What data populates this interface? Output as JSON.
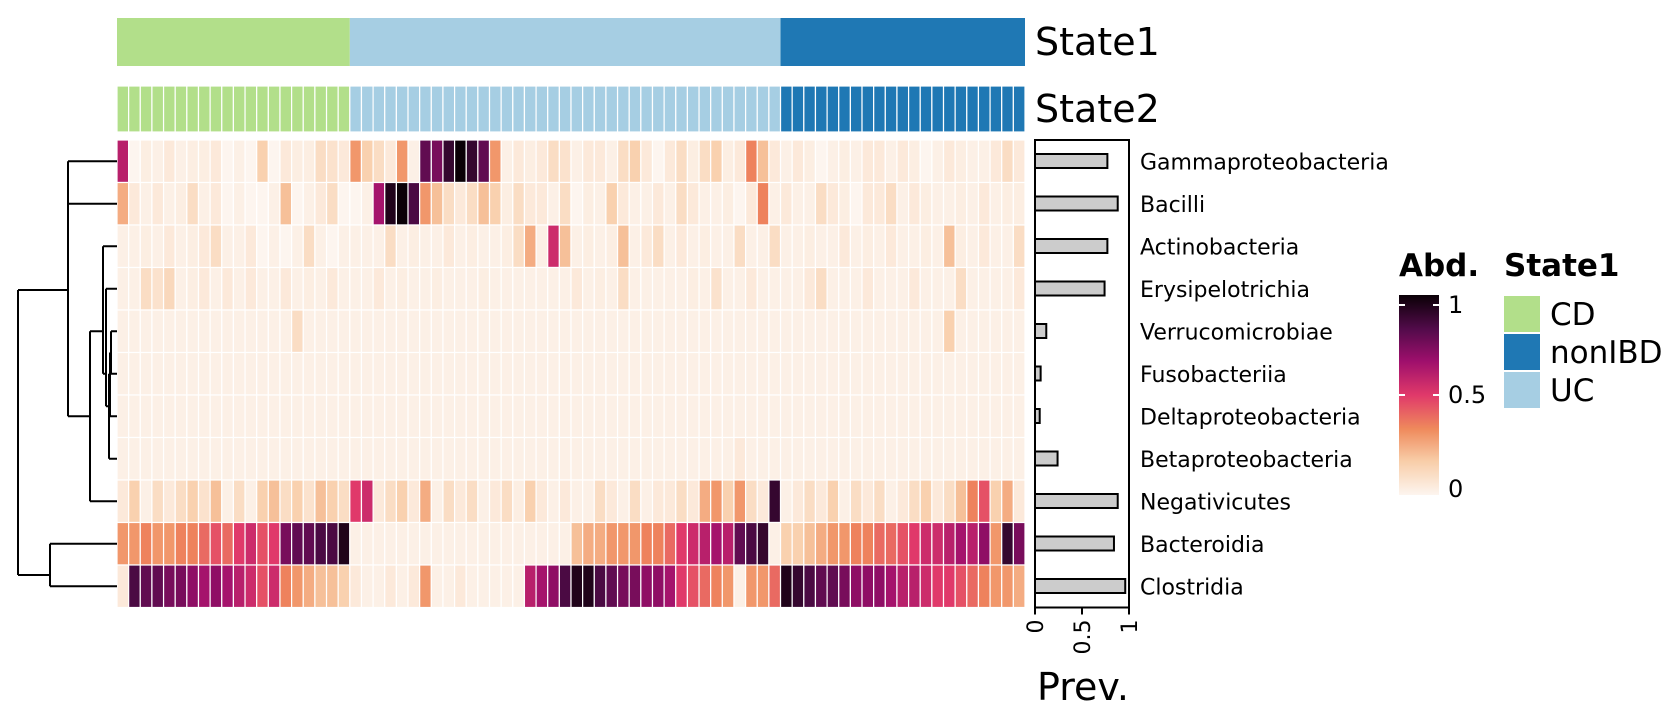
{
  "chart_data": {
    "type": "heatmap",
    "annotation_tracks": [
      "State1",
      "State2"
    ],
    "groups": [
      {
        "name": "CD",
        "color": "#b2df8a",
        "columns": 20
      },
      {
        "name": "UC",
        "color": "#a6cee3",
        "columns": 37
      },
      {
        "name": "nonIBD",
        "color": "#1f78b4",
        "columns": 21
      }
    ],
    "rows": [
      "Gammaproteobacteria",
      "Bacilli",
      "Actinobacteria",
      "Erysipelotrichia",
      "Verrucomicrobiae",
      "Fusobacteriia",
      "Deltaproteobacteria",
      "Betaproteobacteria",
      "Negativicutes",
      "Bacteroidia",
      "Clostridia"
    ],
    "prevalence": [
      0.77,
      0.88,
      0.77,
      0.74,
      0.12,
      0.06,
      0.05,
      0.24,
      0.88,
      0.84,
      0.96
    ],
    "prevalence_axis": {
      "label": "Prev.",
      "ticks": [
        "0",
        "0.5",
        "1"
      ],
      "range": [
        0,
        1
      ]
    },
    "abundance_legend": {
      "title": "Abd.",
      "ticks": [
        "1",
        "0.5",
        "0"
      ],
      "range": [
        0,
        1
      ]
    },
    "group_legend": {
      "title": "State1",
      "items": [
        "CD",
        "nonIBD",
        "UC"
      ]
    },
    "colormap": [
      "#fdf5ef",
      "#f8cda8",
      "#ef8a5c",
      "#e0396a",
      "#9e0f6c",
      "#520b4a",
      "#0a0006"
    ],
    "dendrogram": "hierarchical clustering of rows (left)",
    "values": [
      [
        0.6,
        0,
        0.03,
        0.02,
        0.05,
        0.02,
        0.03,
        0.03,
        0.05,
        0,
        0.02,
        0,
        0.15,
        0,
        0.05,
        0.03,
        0.03,
        0.1,
        0.08,
        0.05,
        0.3,
        0.15,
        0.1,
        0.05,
        0.3,
        0.02,
        0.8,
        0.75,
        0.9,
        1,
        0.9,
        0.8,
        0.3,
        0.02,
        0.05,
        0.03,
        0.05,
        0.1,
        0.08,
        0.02,
        0.05,
        0.05,
        0.02,
        0.1,
        0.15,
        0.05,
        0,
        0.05,
        0.1,
        0.03,
        0.1,
        0.15,
        0.03,
        0.05,
        0.35,
        0.2,
        0.05,
        0.02,
        0.05,
        0.03,
        0,
        0.02,
        0.03,
        0.02,
        0.05,
        0.05,
        0.02,
        0.05,
        0.03,
        0,
        0.02,
        0.05,
        0.03,
        0.02,
        0.02,
        0.05,
        0.1,
        0.05
      ],
      [
        0.25,
        0.05,
        0.02,
        0.05,
        0.02,
        0.03,
        0.1,
        0.02,
        0.05,
        0,
        0.02,
        0,
        0,
        0.02,
        0.2,
        0,
        0.02,
        0.05,
        0.1,
        0,
        0,
        0.02,
        0.65,
        0.95,
        1,
        0.85,
        0.3,
        0.2,
        0.1,
        0.05,
        0.1,
        0.2,
        0.15,
        0.03,
        0.1,
        0.05,
        0.05,
        0.02,
        0.1,
        0,
        0.03,
        0.02,
        0.15,
        0.05,
        0.02,
        0.02,
        0.05,
        0.02,
        0.1,
        0.05,
        0.02,
        0.02,
        0.03,
        0,
        0.05,
        0.35,
        0.02,
        0.05,
        0.02,
        0.02,
        0.1,
        0.05,
        0.03,
        0,
        0.05,
        0.05,
        0.1,
        0.02,
        0.05,
        0.03,
        0.02,
        0.02,
        0.03,
        0.02,
        0.05,
        0.02,
        0.03,
        0.03
      ],
      [
        0.02,
        0.02,
        0.03,
        0.02,
        0.05,
        0.02,
        0.03,
        0.05,
        0.1,
        0.02,
        0.02,
        0.05,
        0,
        0.02,
        0,
        0.02,
        0.1,
        0.02,
        0,
        0.02,
        0.02,
        0.02,
        0.02,
        0.1,
        0.02,
        0.03,
        0.02,
        0.02,
        0.05,
        0.02,
        0.03,
        0.02,
        0.02,
        0.03,
        0.1,
        0.25,
        0.02,
        0.55,
        0.2,
        0.02,
        0.03,
        0.02,
        0.03,
        0.2,
        0.02,
        0.05,
        0.1,
        0.02,
        0.05,
        0.02,
        0.03,
        0.02,
        0.02,
        0.1,
        0.02,
        0.02,
        0.1,
        0.02,
        0.02,
        0.03,
        0.02,
        0.02,
        0.05,
        0.02,
        0.03,
        0.02,
        0.05,
        0.02,
        0.02,
        0.03,
        0.02,
        0.2,
        0.03,
        0.02,
        0.05,
        0.02,
        0.02,
        0.1
      ],
      [
        0.02,
        0.02,
        0.1,
        0.08,
        0.12,
        0.02,
        0.03,
        0.05,
        0.02,
        0.05,
        0.02,
        0.05,
        0.02,
        0.02,
        0.05,
        0.02,
        0.03,
        0.02,
        0.05,
        0.02,
        0.02,
        0.02,
        0.05,
        0.02,
        0.03,
        0.02,
        0.02,
        0.03,
        0.02,
        0.02,
        0.02,
        0.03,
        0.02,
        0.02,
        0.02,
        0.02,
        0.02,
        0.02,
        0.02,
        0.05,
        0.02,
        0.03,
        0.02,
        0.1,
        0.02,
        0.02,
        0.02,
        0.02,
        0.02,
        0.03,
        0.02,
        0.08,
        0.02,
        0.02,
        0.05,
        0.02,
        0.02,
        0.02,
        0.02,
        0.05,
        0.1,
        0.02,
        0.02,
        0.02,
        0.05,
        0.02,
        0.02,
        0.02,
        0.05,
        0.02,
        0.02,
        0.02,
        0.1,
        0.02,
        0.02,
        0.02,
        0.02,
        0.05
      ],
      [
        0.02,
        0.02,
        0.02,
        0.02,
        0.02,
        0.02,
        0.02,
        0.02,
        0.02,
        0.02,
        0.02,
        0.02,
        0.02,
        0.02,
        0.02,
        0.1,
        0.02,
        0.02,
        0.02,
        0.02,
        0.02,
        0.02,
        0.02,
        0.02,
        0.02,
        0.02,
        0.02,
        0.02,
        0.02,
        0.02,
        0.02,
        0.02,
        0.02,
        0.02,
        0.02,
        0.02,
        0.02,
        0.02,
        0.02,
        0.02,
        0.02,
        0.02,
        0.02,
        0.02,
        0.02,
        0.02,
        0.02,
        0.02,
        0.02,
        0.02,
        0.02,
        0.02,
        0.02,
        0.02,
        0.02,
        0.02,
        0.02,
        0.02,
        0.02,
        0.02,
        0.02,
        0.02,
        0.02,
        0.02,
        0.02,
        0.02,
        0.02,
        0.02,
        0.02,
        0.02,
        0.02,
        0.15,
        0.02,
        0.02,
        0.02,
        0.02,
        0.02,
        0.02
      ],
      [
        0.02,
        0.02,
        0.02,
        0.02,
        0.02,
        0.02,
        0.02,
        0.02,
        0.02,
        0.02,
        0.02,
        0.02,
        0.02,
        0.02,
        0.02,
        0.02,
        0.02,
        0.02,
        0.02,
        0.02,
        0.02,
        0.02,
        0.02,
        0.02,
        0.02,
        0.02,
        0.02,
        0.02,
        0.02,
        0.02,
        0.02,
        0.02,
        0.02,
        0.02,
        0.02,
        0.02,
        0.02,
        0.02,
        0.02,
        0.02,
        0.02,
        0.02,
        0.02,
        0.02,
        0.02,
        0.02,
        0.02,
        0.02,
        0.02,
        0.02,
        0.02,
        0.02,
        0.02,
        0.02,
        0.02,
        0.02,
        0.02,
        0.02,
        0.02,
        0.02,
        0.02,
        0.02,
        0.02,
        0.02,
        0.02,
        0.02,
        0.02,
        0.02,
        0.02,
        0.02,
        0.02,
        0.02,
        0.02,
        0.02,
        0.02,
        0.02,
        0.02,
        0.02
      ],
      [
        0.02,
        0.02,
        0.02,
        0.02,
        0.02,
        0.02,
        0.02,
        0.02,
        0.02,
        0.02,
        0.02,
        0.02,
        0.02,
        0.02,
        0.02,
        0.02,
        0.02,
        0.02,
        0.02,
        0.02,
        0.02,
        0.02,
        0.02,
        0.02,
        0.02,
        0.02,
        0.02,
        0.02,
        0.02,
        0.02,
        0.02,
        0.02,
        0.02,
        0.02,
        0.02,
        0.02,
        0.02,
        0.02,
        0.02,
        0.02,
        0.02,
        0.02,
        0.02,
        0.02,
        0.02,
        0.02,
        0.02,
        0.02,
        0.02,
        0.02,
        0.02,
        0.02,
        0.02,
        0.02,
        0.02,
        0.02,
        0.02,
        0.02,
        0.02,
        0.02,
        0.02,
        0.02,
        0.02,
        0.02,
        0.02,
        0.02,
        0.02,
        0.02,
        0.02,
        0.02,
        0.02,
        0.02,
        0.02,
        0.02,
        0.02,
        0.02,
        0.02,
        0.02
      ],
      [
        0.02,
        0.02,
        0.02,
        0.02,
        0.02,
        0.02,
        0.02,
        0.02,
        0.02,
        0.02,
        0.02,
        0.02,
        0.02,
        0.02,
        0.02,
        0.02,
        0.02,
        0.02,
        0.02,
        0.02,
        0.02,
        0.02,
        0.02,
        0.02,
        0.02,
        0.02,
        0.02,
        0.02,
        0.02,
        0.02,
        0.02,
        0.02,
        0.02,
        0.02,
        0.02,
        0.02,
        0.02,
        0.02,
        0.02,
        0.02,
        0.02,
        0.02,
        0.02,
        0.02,
        0.02,
        0.02,
        0.02,
        0.02,
        0.02,
        0.02,
        0.02,
        0.02,
        0.02,
        0.05,
        0.02,
        0.02,
        0.02,
        0.02,
        0.02,
        0.02,
        0.02,
        0.02,
        0.02,
        0.02,
        0.02,
        0.02,
        0.02,
        0.02,
        0.02,
        0.02,
        0.02,
        0.02,
        0.02,
        0.02,
        0.02,
        0.02,
        0.02,
        0.02
      ],
      [
        0.05,
        0.15,
        0.02,
        0.1,
        0.05,
        0.1,
        0.15,
        0.08,
        0.2,
        0.02,
        0.1,
        0.02,
        0.15,
        0.2,
        0.1,
        0.15,
        0.08,
        0.2,
        0.15,
        0.1,
        0.5,
        0.55,
        0.05,
        0.1,
        0.15,
        0.05,
        0.25,
        0.02,
        0.1,
        0.05,
        0.1,
        0.02,
        0.05,
        0.1,
        0.03,
        0.15,
        0.05,
        0.02,
        0.05,
        0.02,
        0.02,
        0.1,
        0.05,
        0.02,
        0.1,
        0.02,
        0.05,
        0.05,
        0.1,
        0.05,
        0.25,
        0.3,
        0.15,
        0.3,
        0.1,
        0.05,
        0.9,
        0.02,
        0.05,
        0.1,
        0.05,
        0.15,
        0.02,
        0.1,
        0.05,
        0.1,
        0.02,
        0.05,
        0.1,
        0.15,
        0.05,
        0.1,
        0.2,
        0.35,
        0.45,
        0.15,
        0.25,
        0.05
      ],
      [
        0.3,
        0.3,
        0.35,
        0.3,
        0.3,
        0.35,
        0.35,
        0.4,
        0.45,
        0.4,
        0.5,
        0.55,
        0.45,
        0.5,
        0.75,
        0.8,
        0.8,
        0.85,
        0.85,
        0.95,
        0.02,
        0.02,
        0.02,
        0.02,
        0.02,
        0.02,
        0.02,
        0.02,
        0.02,
        0.02,
        0.02,
        0.02,
        0.02,
        0.02,
        0.02,
        0.02,
        0.02,
        0.02,
        0.02,
        0.2,
        0.25,
        0.25,
        0.3,
        0.3,
        0.3,
        0.35,
        0.35,
        0.4,
        0.5,
        0.55,
        0.6,
        0.65,
        0.6,
        0.8,
        0.85,
        0.9,
        0.02,
        0.15,
        0.15,
        0.2,
        0.25,
        0.3,
        0.3,
        0.35,
        0.35,
        0.4,
        0.4,
        0.45,
        0.5,
        0.55,
        0.55,
        0.6,
        0.65,
        0.6,
        0.7,
        0.3,
        0.9,
        0.75
      ],
      [
        0.05,
        0.85,
        0.8,
        0.8,
        0.75,
        0.75,
        0.7,
        0.65,
        0.7,
        0.65,
        0.6,
        0.55,
        0.45,
        0.55,
        0.35,
        0.3,
        0.25,
        0.2,
        0.2,
        0.15,
        0.05,
        0.02,
        0.02,
        0.05,
        0.02,
        0.05,
        0.3,
        0.02,
        0.02,
        0.05,
        0.02,
        0.02,
        0.02,
        0.02,
        0.02,
        0.6,
        0.65,
        0.7,
        0.85,
        0.95,
        0.95,
        0.85,
        0.8,
        0.75,
        0.75,
        0.7,
        0.7,
        0.65,
        0.5,
        0.45,
        0.4,
        0.35,
        0.3,
        0.02,
        0.3,
        0.3,
        0.4,
        0.95,
        0.9,
        0.85,
        0.8,
        0.8,
        0.75,
        0.7,
        0.7,
        0.7,
        0.65,
        0.6,
        0.6,
        0.55,
        0.5,
        0.5,
        0.45,
        0.4,
        0.35,
        0.3,
        0.3,
        0.25
      ]
    ]
  }
}
